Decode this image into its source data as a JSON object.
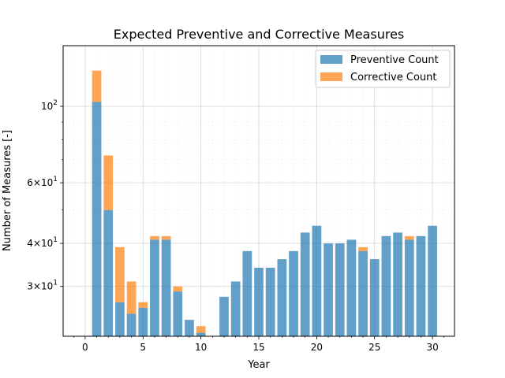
{
  "chart_data": {
    "type": "bar",
    "stacked": true,
    "title": "Expected Preventive and Corrective Measures",
    "xlabel": "Year",
    "ylabel": "Number of Measures [-]",
    "x": [
      1,
      2,
      3,
      4,
      5,
      6,
      7,
      8,
      9,
      10,
      11,
      12,
      13,
      14,
      15,
      16,
      17,
      18,
      19,
      20,
      21,
      22,
      23,
      24,
      25,
      26,
      27,
      28,
      29,
      30
    ],
    "series": [
      {
        "name": "Preventive Count",
        "color": "#1f77b4",
        "values": [
          103,
          50,
          27,
          25,
          26,
          41,
          41,
          29,
          24,
          22,
          21,
          28,
          31,
          38,
          34,
          34,
          36,
          38,
          43,
          45,
          40,
          40,
          41,
          38,
          36,
          42,
          43,
          41,
          42,
          45
        ]
      },
      {
        "name": "Corrective Count",
        "color": "#ff7f0e",
        "values": [
          24,
          22,
          12,
          6,
          1,
          1,
          1,
          1,
          0,
          1,
          0,
          0,
          0,
          0,
          0,
          0,
          0,
          0,
          0,
          0,
          0,
          0,
          0,
          1,
          0,
          0,
          0,
          1,
          0,
          0
        ]
      }
    ],
    "xlim": [
      -1.9,
      31.9
    ],
    "ylim": [
      21.5,
      150
    ],
    "yscale": "log",
    "xticks": [
      {
        "value": 0,
        "label": "0"
      },
      {
        "value": 5,
        "label": "5"
      },
      {
        "value": 10,
        "label": "10"
      },
      {
        "value": 15,
        "label": "15"
      },
      {
        "value": 20,
        "label": "20"
      },
      {
        "value": 25,
        "label": "25"
      },
      {
        "value": 30,
        "label": "30"
      }
    ],
    "yticks": [
      {
        "value": 30,
        "base": "3×10",
        "exp": "1"
      },
      {
        "value": 40,
        "base": "4×10",
        "exp": "1"
      },
      {
        "value": 60,
        "base": "6×10",
        "exp": "1"
      },
      {
        "value": 100,
        "base": "10",
        "exp": "2"
      }
    ],
    "grid": true,
    "legend_position": "top-right"
  }
}
